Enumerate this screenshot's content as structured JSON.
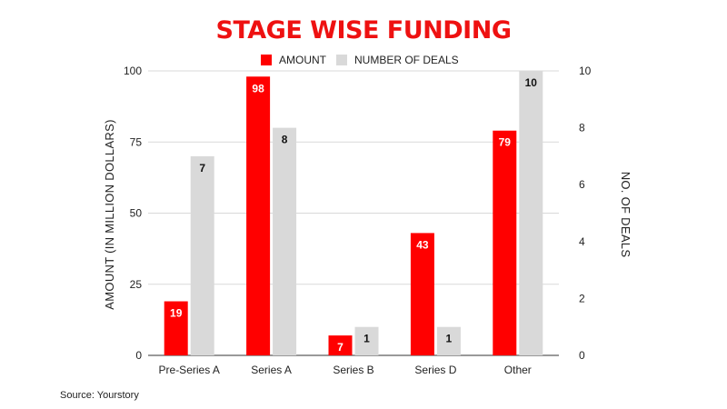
{
  "chart_data": {
    "type": "bar",
    "title": "STAGE WISE FUNDING",
    "categories": [
      "Pre-Series A",
      "Series A",
      "Series B",
      "Series D",
      "Other"
    ],
    "series": [
      {
        "name": "AMOUNT",
        "axis": "left",
        "color": "#ff0000",
        "values": [
          19,
          98,
          7,
          43,
          79
        ]
      },
      {
        "name": "NUMBER OF DEALS",
        "axis": "right",
        "color": "#d9d9d9",
        "values": [
          7,
          8,
          1,
          1,
          10
        ]
      }
    ],
    "ylabel": "AMOUNT (IN MILLION DOLLARS)",
    "y2label": "NO. OF DEALS",
    "ylim": [
      0,
      100
    ],
    "y2lim": [
      0,
      10
    ],
    "yticks": [
      0,
      25,
      50,
      75,
      100
    ],
    "y2ticks": [
      0,
      2,
      4,
      6,
      8,
      10
    ],
    "grid": true,
    "legend_position": "top"
  },
  "source": "Source: Yourstory"
}
